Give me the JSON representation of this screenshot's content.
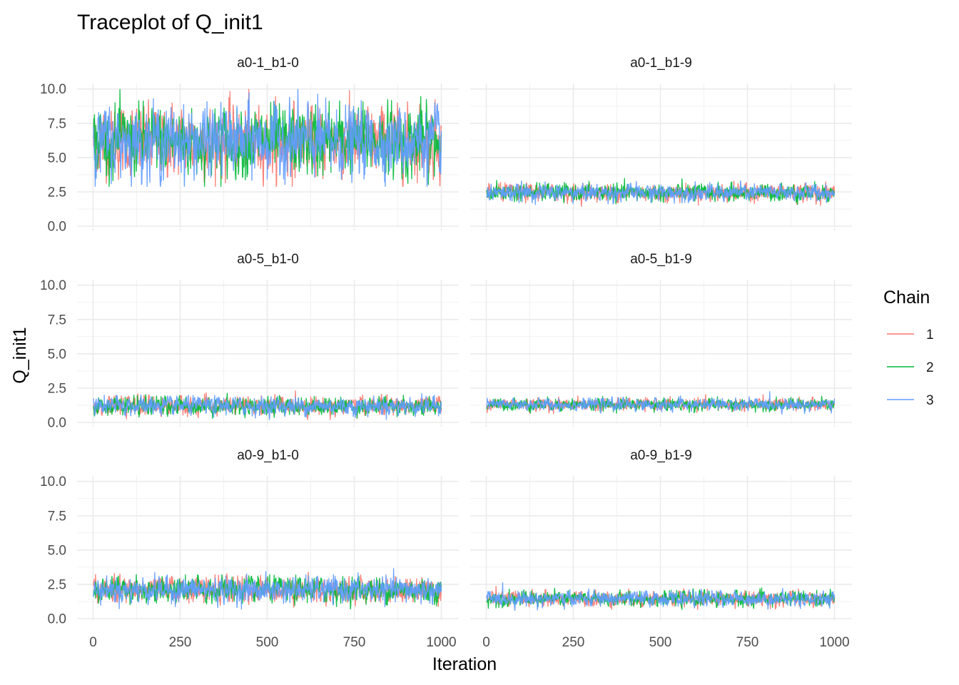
{
  "chart_data": {
    "type": "line",
    "title": "Traceplot of Q_init1",
    "xlabel": "Iteration",
    "ylabel": "Q_init1",
    "xlim": [
      0,
      1000
    ],
    "ylim": [
      0,
      10.4
    ],
    "x_ticks": [
      0,
      250,
      500,
      750,
      1000
    ],
    "x_tick_labels": [
      "0",
      "250",
      "500",
      "750",
      "1000"
    ],
    "y_ticks": [
      0,
      2.5,
      5,
      7.5,
      10
    ],
    "y_tick_labels": [
      "0.0",
      "2.5",
      "5.0",
      "7.5",
      "10.0"
    ],
    "grid": true,
    "legend": {
      "title": "Chain",
      "placement": "right",
      "entries": [
        {
          "label": "1",
          "color": "#F8766D"
        },
        {
          "label": "2",
          "color": "#00BA38"
        },
        {
          "label": "3",
          "color": "#619CFF"
        }
      ]
    },
    "iterations_per_chain": 1000,
    "panels": [
      {
        "label": "a0-1_b1-0",
        "center": 6.2,
        "spread": 1.15,
        "min": 2.9,
        "max": 10.4
      },
      {
        "label": "a0-1_b1-9",
        "center": 2.45,
        "spread": 0.28,
        "min": 1.4,
        "max": 3.7
      },
      {
        "label": "a0-5_b1-0",
        "center": 1.2,
        "spread": 0.3,
        "min": 0.2,
        "max": 2.3
      },
      {
        "label": "a0-5_b1-9",
        "center": 1.3,
        "spread": 0.2,
        "min": 0.6,
        "max": 2.4
      },
      {
        "label": "a0-9_b1-0",
        "center": 2.1,
        "spread": 0.42,
        "min": 0.7,
        "max": 3.9
      },
      {
        "label": "a0-9_b1-9",
        "center": 1.45,
        "spread": 0.25,
        "min": 0.6,
        "max": 2.8
      }
    ]
  }
}
